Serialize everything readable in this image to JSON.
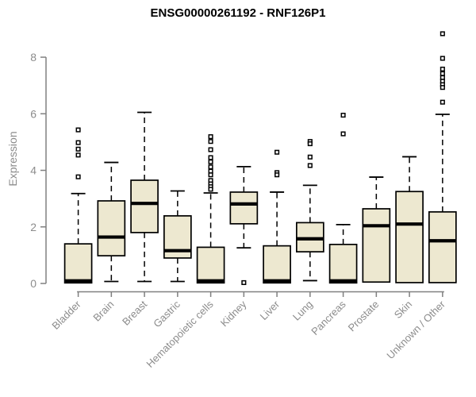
{
  "chart_data": {
    "type": "boxplot",
    "title": "ENSG00000261192 - RNF126P1",
    "ylabel": "Expression",
    "ylim": [
      0,
      8.9
    ],
    "yticks": [
      0,
      2,
      4,
      6,
      8
    ],
    "grid": false,
    "legend": "none",
    "colors": {
      "box_fill": "#ede8d0",
      "box_border": "#000000",
      "median": "#000000",
      "whisker": "#000000",
      "outlier": "#000000",
      "axis": "#808080",
      "tick_label": "#8c8c8c",
      "title": "#000000",
      "background": "#ffffff"
    },
    "categories": [
      "Bladder",
      "Brain",
      "Breast",
      "Gastric",
      "Hematopoietic cells",
      "Kidney",
      "Liver",
      "Lung",
      "Pancreas",
      "Prostate",
      "Skin",
      "Unknown / Other"
    ],
    "series": [
      {
        "name": "Bladder",
        "whisker_low": 0.02,
        "q1": 0.02,
        "median": 0.06,
        "q3": 1.4,
        "whisker_high": 3.18,
        "outliers": [
          5.43,
          4.98,
          4.75,
          4.54,
          3.77
        ]
      },
      {
        "name": "Brain",
        "whisker_low": 0.07,
        "q1": 0.98,
        "median": 1.64,
        "q3": 2.92,
        "whisker_high": 4.28,
        "outliers": []
      },
      {
        "name": "Breast",
        "whisker_low": 0.07,
        "q1": 1.8,
        "median": 2.83,
        "q3": 3.65,
        "whisker_high": 6.05,
        "outliers": []
      },
      {
        "name": "Gastric",
        "whisker_low": 0.07,
        "q1": 0.9,
        "median": 1.16,
        "q3": 2.39,
        "whisker_high": 3.27,
        "outliers": []
      },
      {
        "name": "Hematopoietic cells",
        "whisker_low": 0.02,
        "q1": 0.02,
        "median": 0.05,
        "q3": 1.28,
        "whisker_high": 3.2,
        "outliers": [
          5.19,
          5.02,
          4.73,
          4.45,
          4.3,
          4.12,
          3.97,
          3.84,
          3.64,
          3.52,
          3.42,
          3.33
        ]
      },
      {
        "name": "Kidney",
        "whisker_low": 1.26,
        "q1": 2.11,
        "median": 2.81,
        "q3": 3.23,
        "whisker_high": 4.13,
        "outliers": [
          0.03
        ]
      },
      {
        "name": "Liver",
        "whisker_low": 0.02,
        "q1": 0.02,
        "median": 0.05,
        "q3": 1.33,
        "whisker_high": 3.23,
        "outliers": [
          4.64,
          3.92,
          3.84
        ]
      },
      {
        "name": "Lung",
        "whisker_low": 0.1,
        "q1": 1.12,
        "median": 1.58,
        "q3": 2.15,
        "whisker_high": 3.47,
        "outliers": [
          5.02,
          4.94,
          4.47,
          4.17
        ]
      },
      {
        "name": "Pancreas",
        "whisker_low": 0.02,
        "q1": 0.02,
        "median": 0.05,
        "q3": 1.38,
        "whisker_high": 2.08,
        "outliers": [
          5.95,
          5.29
        ]
      },
      {
        "name": "Prostate",
        "whisker_low": 0.05,
        "q1": 0.05,
        "median": 2.04,
        "q3": 2.64,
        "whisker_high": 3.76,
        "outliers": []
      },
      {
        "name": "Skin",
        "whisker_low": 0.03,
        "q1": 0.03,
        "median": 2.1,
        "q3": 3.25,
        "whisker_high": 4.48,
        "outliers": []
      },
      {
        "name": "Unknown / Other",
        "whisker_low": 0.03,
        "q1": 0.03,
        "median": 1.51,
        "q3": 2.53,
        "whisker_high": 5.98,
        "outliers": [
          8.83,
          7.96,
          7.58,
          7.42,
          7.28,
          7.15,
          7.03,
          6.93,
          6.41
        ]
      }
    ]
  }
}
